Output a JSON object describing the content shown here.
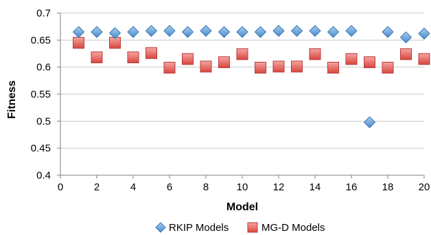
{
  "chart_data": {
    "type": "scatter",
    "title": "",
    "xlabel": "Model",
    "ylabel": "Fitness",
    "xlim": [
      0,
      20
    ],
    "ylim": [
      0.4,
      0.7
    ],
    "x_ticks": [
      0,
      2,
      4,
      6,
      8,
      10,
      12,
      14,
      16,
      18,
      20
    ],
    "x_tick_labels": [
      "0",
      "2",
      "4",
      "6",
      "8",
      "10",
      "12",
      "14",
      "16",
      "18",
      "20"
    ],
    "y_ticks": [
      0.4,
      0.45,
      0.5,
      0.55,
      0.6,
      0.65,
      0.7
    ],
    "y_tick_labels": [
      "0.4",
      "0.45",
      "0.5",
      "0.55",
      "0.6",
      "0.65",
      "0.7"
    ],
    "grid": "horizontal",
    "legend_position": "bottom",
    "series": [
      {
        "name": "RKIP Models",
        "marker": "diamond",
        "color": "#5b9bd5",
        "x": [
          1,
          2,
          3,
          4,
          5,
          6,
          7,
          8,
          9,
          10,
          11,
          12,
          13,
          14,
          15,
          16,
          17,
          18,
          19,
          20
        ],
        "values": [
          0.665,
          0.665,
          0.663,
          0.665,
          0.667,
          0.667,
          0.665,
          0.667,
          0.665,
          0.665,
          0.665,
          0.667,
          0.667,
          0.667,
          0.665,
          0.667,
          0.498,
          0.665,
          0.655,
          0.662
        ]
      },
      {
        "name": "MG-D Models",
        "marker": "square",
        "color": "#e05a5a",
        "x": [
          1,
          2,
          3,
          4,
          5,
          6,
          7,
          8,
          9,
          10,
          11,
          12,
          13,
          14,
          15,
          16,
          17,
          18,
          19,
          20
        ],
        "values": [
          0.645,
          0.618,
          0.645,
          0.618,
          0.626,
          0.599,
          0.615,
          0.601,
          0.609,
          0.624,
          0.599,
          0.601,
          0.601,
          0.624,
          0.599,
          0.615,
          0.609,
          0.599,
          0.624,
          0.615
        ]
      }
    ]
  }
}
